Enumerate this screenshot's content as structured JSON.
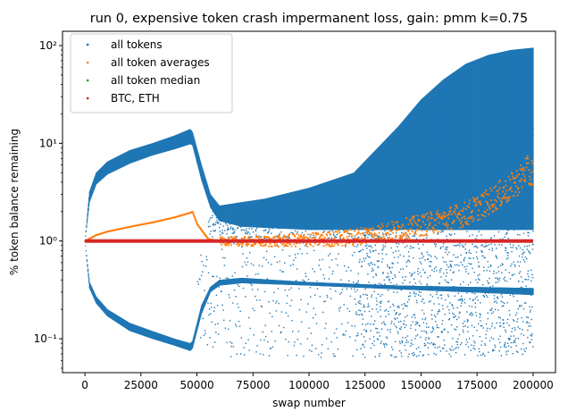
{
  "chart_data": {
    "type": "scatter",
    "title": "run 0, expensive token crash impermanent loss, gain: pmm k=0.75",
    "xlabel": "swap number",
    "ylabel": "% token balance remaining",
    "xlim": [
      -10000,
      210000
    ],
    "ylim": [
      0.045,
      140
    ],
    "yscale": "log",
    "grid": false,
    "legend_position": "top-left",
    "x_ticks": [
      0,
      25000,
      50000,
      75000,
      100000,
      125000,
      150000,
      175000,
      200000
    ],
    "x_tick_labels": [
      "0",
      "25000",
      "50000",
      "75000",
      "100000",
      "125000",
      "150000",
      "175000",
      "200000"
    ],
    "y_ticks": [
      0.1,
      1,
      10,
      100
    ],
    "y_tick_labels": [
      "10⁻¹",
      "10⁰",
      "10¹",
      "10²"
    ],
    "series": [
      {
        "name": "all tokens",
        "color": "#1f77b4",
        "upper_envelope": {
          "x": [
            0,
            2000,
            5000,
            10000,
            20000,
            30000,
            40000,
            47000,
            48000,
            52000,
            56000,
            60000,
            70000,
            80000,
            100000,
            120000,
            140000,
            150000,
            160000,
            170000,
            180000,
            190000,
            200000
          ],
          "y": [
            1,
            3.2,
            5,
            6.5,
            8.5,
            10,
            12,
            14,
            13,
            6,
            3,
            2.3,
            2.5,
            2.7,
            3.5,
            5,
            15,
            28,
            45,
            65,
            80,
            90,
            95
          ]
        },
        "inner_upper": {
          "x": [
            0,
            2000,
            5000,
            10000,
            20000,
            30000,
            40000,
            47000,
            48000,
            52000,
            56000,
            60000,
            70000,
            100000,
            140000,
            200000
          ],
          "y": [
            1,
            2.5,
            3.8,
            4.8,
            6.2,
            7.5,
            8.7,
            9.8,
            9.5,
            4.2,
            2.2,
            1.6,
            1.4,
            1.3,
            1.3,
            1.3
          ]
        },
        "lower_envelope": {
          "x": [
            0,
            2000,
            5000,
            10000,
            20000,
            30000,
            40000,
            47000,
            48000,
            52000,
            56000,
            60000,
            70000,
            100000,
            140000,
            170000,
            200000
          ],
          "y": [
            1,
            0.33,
            0.23,
            0.17,
            0.12,
            0.1,
            0.085,
            0.075,
            0.08,
            0.18,
            0.3,
            0.35,
            0.37,
            0.35,
            0.32,
            0.3,
            0.28
          ]
        },
        "inner_lower": {
          "x": [
            0,
            2000,
            5000,
            10000,
            20000,
            30000,
            40000,
            47000,
            48000,
            52000,
            56000,
            60000,
            70000,
            100000,
            140000,
            200000
          ],
          "y": [
            1,
            0.38,
            0.27,
            0.2,
            0.145,
            0.12,
            0.1,
            0.09,
            0.095,
            0.22,
            0.34,
            0.4,
            0.42,
            0.38,
            0.35,
            0.33
          ]
        },
        "outlier_range": [
          0.065,
          1.0
        ]
      },
      {
        "name": "all token averages",
        "color": "#ff7f0e",
        "x": [
          0,
          5000,
          10000,
          20000,
          30000,
          40000,
          47000,
          48000,
          50000,
          55000,
          60000,
          70000,
          80000,
          90000,
          100000,
          110000,
          120000,
          130000,
          140000,
          150000,
          160000,
          170000,
          180000,
          185000,
          190000,
          195000,
          197000,
          199000,
          200000
        ],
        "y": [
          1.0,
          1.15,
          1.25,
          1.4,
          1.55,
          1.75,
          1.95,
          2.0,
          1.5,
          1.05,
          1.0,
          0.99,
          0.99,
          1.01,
          1.03,
          1.05,
          1.1,
          1.2,
          1.3,
          1.45,
          1.65,
          1.9,
          2.5,
          3.0,
          3.5,
          4.5,
          5.5,
          4.5,
          5.8
        ]
      },
      {
        "name": "all token median",
        "color": "#2ca02c",
        "x": [
          0,
          200000
        ],
        "y": [
          1.0,
          1.0
        ]
      },
      {
        "name": "BTC, ETH",
        "color": "#d62728",
        "x": [
          0,
          200000
        ],
        "y": [
          0.97,
          0.97
        ]
      }
    ]
  }
}
